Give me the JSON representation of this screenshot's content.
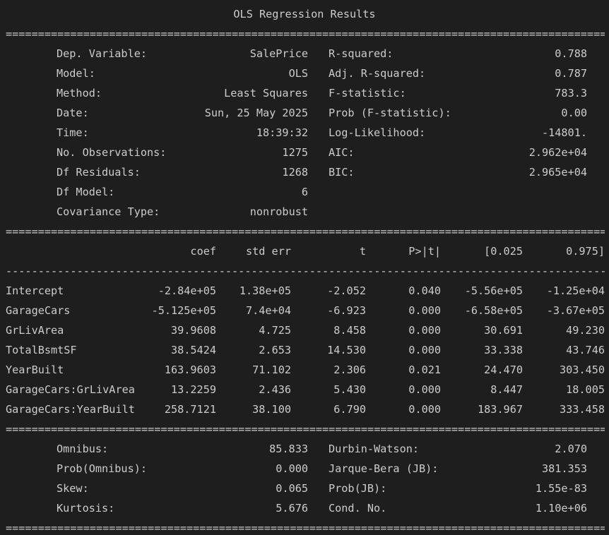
{
  "title": "OLS Regression Results",
  "rule_double": "===============================================================================================================================",
  "rule_single": "-------------------------------------------------------------------------------------------------------------------------------",
  "header_left": [
    {
      "label": "Dep. Variable:",
      "value": "SalePrice"
    },
    {
      "label": "Model:",
      "value": "OLS"
    },
    {
      "label": "Method:",
      "value": "Least Squares"
    },
    {
      "label": "Date:",
      "value": "Sun, 25 May 2025"
    },
    {
      "label": "Time:",
      "value": "18:39:32"
    },
    {
      "label": "No. Observations:",
      "value": "1275"
    },
    {
      "label": "Df Residuals:",
      "value": "1268"
    },
    {
      "label": "Df Model:",
      "value": "6"
    },
    {
      "label": "Covariance Type:",
      "value": "nonrobust"
    }
  ],
  "header_right": [
    {
      "label": "R-squared:",
      "value": "0.788"
    },
    {
      "label": "Adj. R-squared:",
      "value": "0.787"
    },
    {
      "label": "F-statistic:",
      "value": "783.3"
    },
    {
      "label": "Prob (F-statistic):",
      "value": "0.00"
    },
    {
      "label": "Log-Likelihood:",
      "value": "-14801."
    },
    {
      "label": "AIC:",
      "value": "2.962e+04"
    },
    {
      "label": "BIC:",
      "value": "2.965e+04"
    }
  ],
  "coef_columns": [
    "coef",
    "std err",
    "t",
    "P>|t|",
    "[0.025",
    "0.975]"
  ],
  "coef_rows": [
    {
      "name": "Intercept",
      "coef": "-2.84e+05",
      "std_err": "1.38e+05",
      "t": "-2.052",
      "p": "0.040",
      "lo": "-5.56e+05",
      "hi": "-1.25e+04"
    },
    {
      "name": "GarageCars",
      "coef": "-5.125e+05",
      "std_err": "7.4e+04",
      "t": "-6.923",
      "p": "0.000",
      "lo": "-6.58e+05",
      "hi": "-3.67e+05"
    },
    {
      "name": "GrLivArea",
      "coef": "39.9608",
      "std_err": "4.725",
      "t": "8.458",
      "p": "0.000",
      "lo": "30.691",
      "hi": "49.230"
    },
    {
      "name": "TotalBsmtSF",
      "coef": "38.5424",
      "std_err": "2.653",
      "t": "14.530",
      "p": "0.000",
      "lo": "33.338",
      "hi": "43.746"
    },
    {
      "name": "YearBuilt",
      "coef": "163.9603",
      "std_err": "71.102",
      "t": "2.306",
      "p": "0.021",
      "lo": "24.470",
      "hi": "303.450"
    },
    {
      "name": "GarageCars:GrLivArea",
      "coef": "13.2259",
      "std_err": "2.436",
      "t": "5.430",
      "p": "0.000",
      "lo": "8.447",
      "hi": "18.005"
    },
    {
      "name": "GarageCars:YearBuilt",
      "coef": "258.7121",
      "std_err": "38.100",
      "t": "6.790",
      "p": "0.000",
      "lo": "183.967",
      "hi": "333.458"
    }
  ],
  "footer_left": [
    {
      "label": "Omnibus:",
      "value": "85.833"
    },
    {
      "label": "Prob(Omnibus):",
      "value": "0.000"
    },
    {
      "label": "Skew:",
      "value": "0.065"
    },
    {
      "label": "Kurtosis:",
      "value": "5.676"
    }
  ],
  "footer_right": [
    {
      "label": "Durbin-Watson:",
      "value": "2.070"
    },
    {
      "label": "Jarque-Bera (JB):",
      "value": "381.353"
    },
    {
      "label": "Prob(JB):",
      "value": "1.55e-83"
    },
    {
      "label": "Cond. No.",
      "value": "1.10e+06"
    }
  ]
}
